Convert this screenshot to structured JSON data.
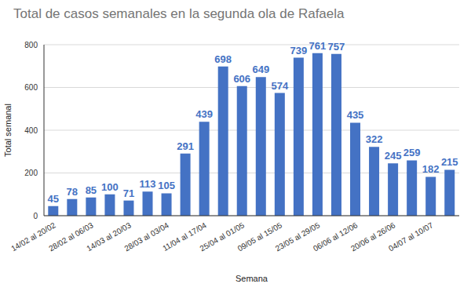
{
  "chart_data": {
    "type": "bar",
    "title": "Total de casos semanales en la segunda ola de Rafaela",
    "x_label": "Semana",
    "y_label": "Total semanal",
    "categories": [
      "14/02 al 20/02",
      null,
      "28/02 al 06/03",
      null,
      "14/03 al 20/03",
      null,
      "28/03 al 03/04",
      null,
      "11/04 al 17/04",
      null,
      "25/04 al 01/05",
      null,
      "09/05 al 15/05",
      null,
      "23/05 al 29/05",
      null,
      "06/06 al 12/06",
      null,
      "20/06 al 26/06",
      null,
      "04/07 al 10/07",
      null
    ],
    "values": [
      45,
      78,
      85,
      100,
      71,
      113,
      105,
      291,
      439,
      698,
      606,
      649,
      574,
      739,
      761,
      757,
      435,
      322,
      245,
      259,
      182,
      215
    ],
    "color": "#4472c4",
    "ylim": [
      0,
      800
    ],
    "yticks": [
      0,
      200,
      400,
      600,
      800
    ],
    "grid": true,
    "data_labels": true
  }
}
